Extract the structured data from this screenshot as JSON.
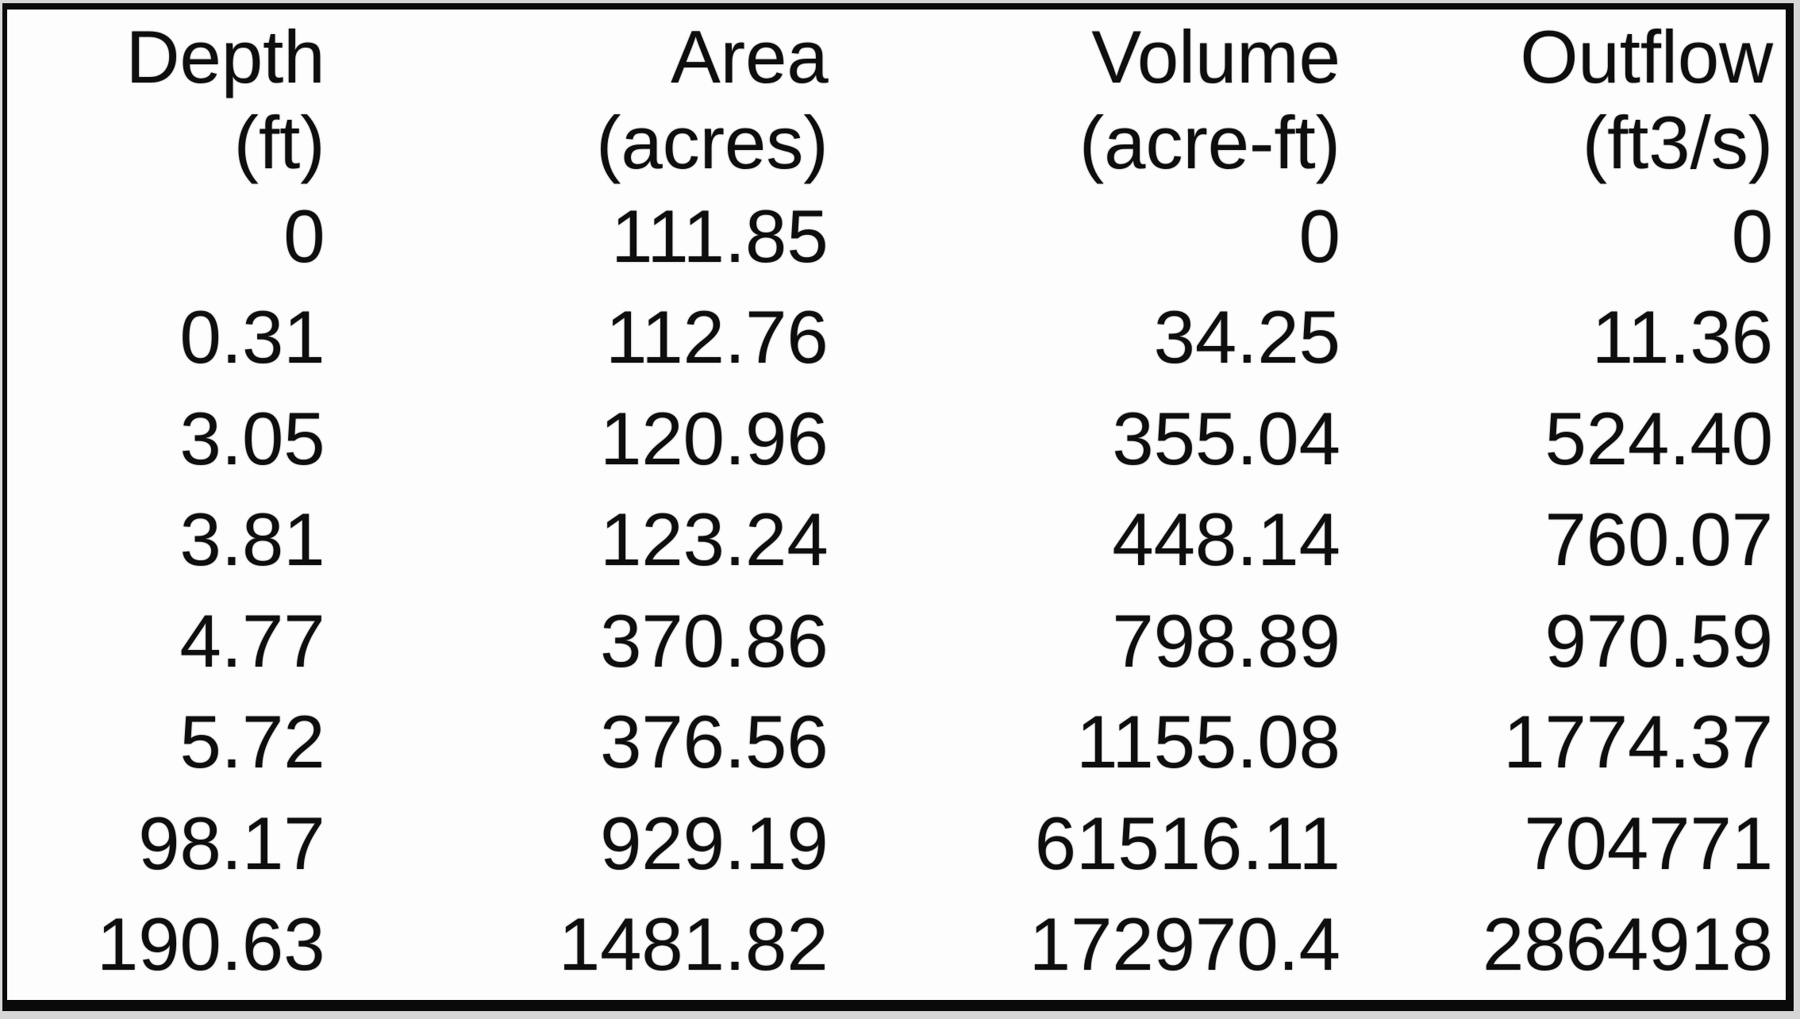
{
  "chart_data": {
    "type": "table",
    "columns": [
      {
        "key": "depth",
        "name": "Depth",
        "unit": "(ft)"
      },
      {
        "key": "area",
        "name": "Area",
        "unit": "(acres)"
      },
      {
        "key": "volume",
        "name": "Volume",
        "unit": "(acre-ft)"
      },
      {
        "key": "outflow",
        "name": "Outflow",
        "unit": "(ft3/s)"
      }
    ],
    "rows": [
      [
        "0",
        "111.85",
        "0",
        "0"
      ],
      [
        "0.31",
        "112.76",
        "34.25",
        "11.36"
      ],
      [
        "3.05",
        "120.96",
        "355.04",
        "524.40"
      ],
      [
        "3.81",
        "123.24",
        "448.14",
        "760.07"
      ],
      [
        "4.77",
        "370.86",
        "798.89",
        "970.59"
      ],
      [
        "5.72",
        "376.56",
        "1155.08",
        "1774.37"
      ],
      [
        "98.17",
        "929.19",
        "61516.11",
        "704771"
      ],
      [
        "190.63",
        "1481.82",
        "172970.4",
        "2864918"
      ]
    ]
  },
  "colors": {
    "frame_border": "#0a0a0a",
    "surround_background": "#d6d6d6",
    "paper_background": "#fdfdfd",
    "text": "#0e0e0e"
  }
}
